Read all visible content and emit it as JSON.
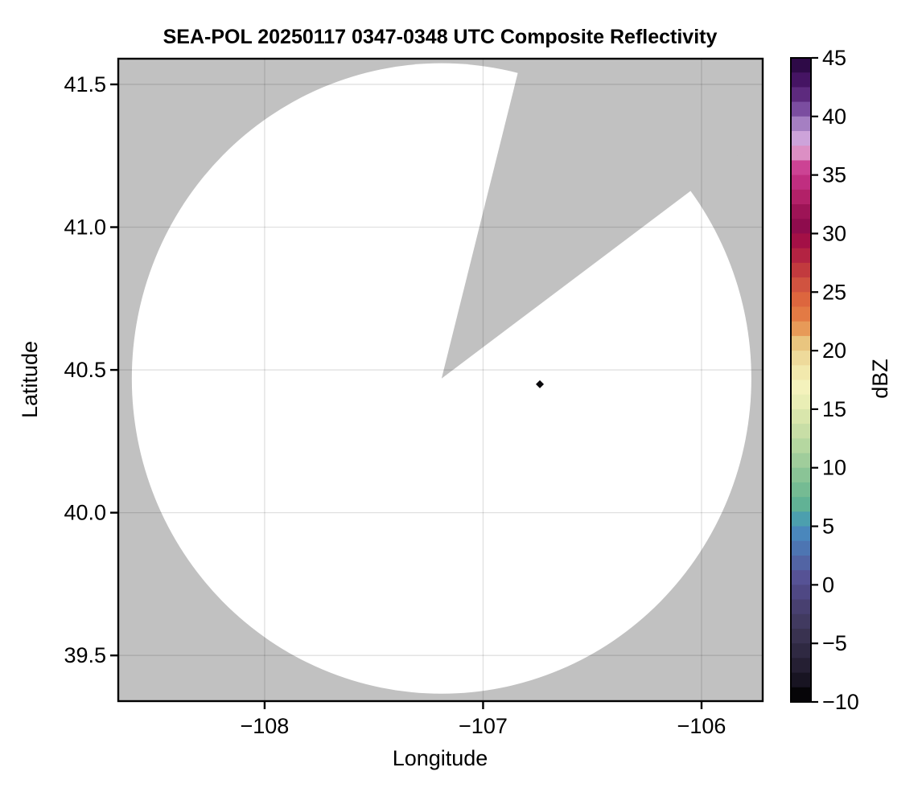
{
  "title": "SEA-POL 20250117 0347-0348 UTC Composite Reflectivity",
  "axis": {
    "xlabel": "Longitude",
    "ylabel": "Latitude"
  },
  "ticks": {
    "x_labels": [
      "−108",
      "−107",
      "−106"
    ],
    "y_labels": [
      "41.5",
      "41.0",
      "40.5",
      "40.0",
      "39.5"
    ]
  },
  "colorbar_label": "dBZ",
  "colors": {
    "nodata_gray": "#c1c1c1",
    "scanned_white": "#ffffff",
    "spine_black": "#000000",
    "gridline": "rgba(0,0,0,0.12)"
  },
  "chart_data": {
    "type": "heatmap",
    "description": "Radar PPI composite reflectivity map. White disc = radar-scanned area with no precipitation echo; gray = no data (outside range ring and a beam-blocked sector to the NNE); one small near-black echo pixel east of the radar.",
    "title": "SEA-POL 20250117 0347-0348 UTC Composite Reflectivity",
    "xlabel": "Longitude",
    "ylabel": "Latitude",
    "xlim": [
      -108.67,
      -105.72
    ],
    "ylim": [
      39.34,
      41.59
    ],
    "x_ticks": [
      -108,
      -107,
      -106
    ],
    "y_ticks": [
      41.5,
      41.0,
      40.5,
      40.0,
      39.5
    ],
    "grid": true,
    "radar_coverage": {
      "center_lon": -107.19,
      "center_lat": 40.47,
      "radius_lon_deg": 1.418,
      "radius_lat_deg": 1.104,
      "blocked_sector_azimuth_deg": [
        14,
        53
      ],
      "scanned_color": "#ffffff",
      "nodata_color": "#c1c1c1"
    },
    "echoes": [
      {
        "lon": -106.74,
        "lat": 40.45,
        "dbz_approx": -10,
        "color": "#0a090c",
        "marker": "diamond"
      }
    ],
    "colorbar": {
      "label": "dBZ",
      "min": -10,
      "max": 45,
      "ticks": [
        45,
        40,
        35,
        30,
        25,
        20,
        15,
        10,
        5,
        0,
        -5,
        -10
      ],
      "tick_labels": [
        "45",
        "40",
        "35",
        "30",
        "25",
        "20",
        "15",
        "10",
        "5",
        "0",
        "−5",
        "−10"
      ],
      "band_step_dbz": 1.25,
      "band_colors_top_to_bottom": [
        "#2e0a47",
        "#451463",
        "#5d2a7e",
        "#7b4da0",
        "#a57fc2",
        "#cda3da",
        "#dc8fc4",
        "#cc4394",
        "#c02e80",
        "#b22168",
        "#9d1456",
        "#8e0c4d",
        "#a31046",
        "#b32342",
        "#c23a3e",
        "#d05340",
        "#dd663e",
        "#e37a44",
        "#e79a58",
        "#e9c57f",
        "#eeda9b",
        "#f2e9ad",
        "#f4f2bc",
        "#e9eeb5",
        "#d9e6ac",
        "#c8dea6",
        "#b5d7a0",
        "#a0cd9b",
        "#8ac496",
        "#75bb93",
        "#61b295",
        "#4c9fae",
        "#4a87bc",
        "#4d75b2",
        "#5264a4",
        "#565295",
        "#4f4884",
        "#484070",
        "#413a60",
        "#393250",
        "#2f2942",
        "#251f33",
        "#181422",
        "#060508"
      ]
    }
  }
}
